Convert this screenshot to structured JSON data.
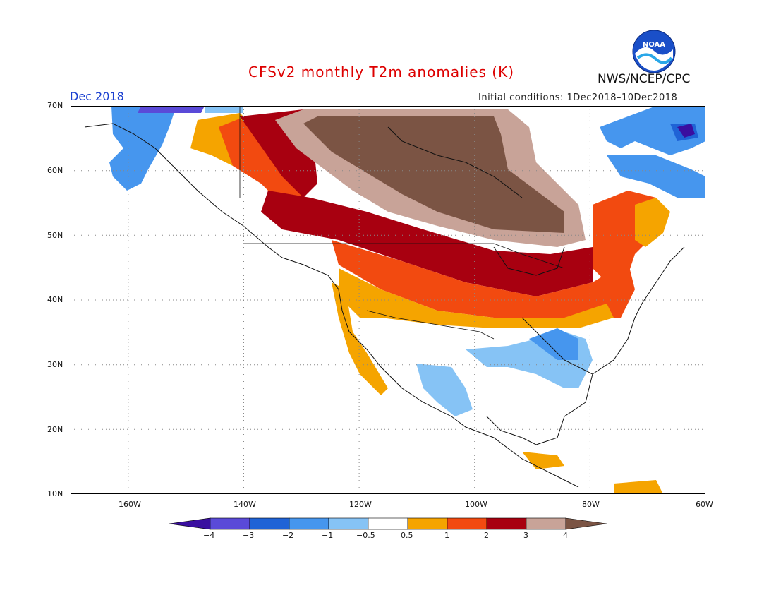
{
  "header": {
    "title": "CFSv2 monthly T2m anomalies (K)",
    "period": "Dec 2018",
    "initial_conditions": "Initial conditions: 1Dec2018–10Dec2018",
    "agency": "NWS/NCEP/CPC",
    "logo_text": "NOAA"
  },
  "axes": {
    "lat_labels": [
      "70N",
      "60N",
      "50N",
      "40N",
      "30N",
      "20N",
      "10N"
    ],
    "lon_labels": [
      "160W",
      "140W",
      "120W",
      "100W",
      "80W",
      "60W"
    ]
  },
  "legend": {
    "labels": [
      "−4",
      "−3",
      "−2",
      "−1",
      "−0.5",
      "0.5",
      "1",
      "2",
      "3",
      "4"
    ],
    "colors": [
      "#3a0fa0",
      "#5a4ad8",
      "#1f63d6",
      "#4696ee",
      "#86c3f5",
      "#ffffff",
      "#f5a400",
      "#f24a10",
      "#a80010",
      "#c8a398",
      "#7b5444"
    ]
  }
}
